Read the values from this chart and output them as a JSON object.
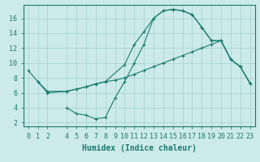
{
  "line1_x": [
    0,
    1,
    2,
    4,
    5,
    6,
    7,
    8,
    10,
    11,
    12,
    13,
    14,
    15,
    16,
    17,
    18,
    19,
    20,
    21,
    22,
    23
  ],
  "line1_y": [
    9,
    7.5,
    6.2,
    6.2,
    6.5,
    6.8,
    7.2,
    7.5,
    9.8,
    12.5,
    14.2,
    16.0,
    17.0,
    17.2,
    17.0,
    16.5,
    14.8,
    13.0,
    13.0,
    10.5,
    9.5,
    7.3
  ],
  "line2_x": [
    1,
    2,
    4,
    5,
    6,
    7,
    8,
    9,
    10,
    11,
    12,
    13,
    14,
    15,
    16,
    17,
    18,
    19,
    20,
    21,
    22,
    23
  ],
  "line2_y": [
    7.5,
    6.0,
    6.2,
    6.5,
    6.8,
    7.2,
    7.5,
    7.7,
    8.0,
    8.5,
    9.0,
    9.5,
    10.0,
    10.5,
    11.0,
    11.5,
    12.0,
    12.5,
    13.0,
    10.5,
    9.5,
    7.3
  ],
  "line3_x": [
    4,
    5,
    6,
    7,
    8,
    9,
    10,
    11,
    12,
    13,
    14,
    15,
    16,
    17,
    18,
    19,
    20,
    21,
    22,
    23
  ],
  "line3_y": [
    4.0,
    3.2,
    3.0,
    2.5,
    2.7,
    5.3,
    7.5,
    10.0,
    12.5,
    16.0,
    17.0,
    17.2,
    17.0,
    16.5,
    14.8,
    13.0,
    13.0,
    10.5,
    9.5,
    7.3
  ],
  "color": "#1a7a6e",
  "bg_color": "#cceaea",
  "grid_color": "#aad4d4",
  "xlabel": "Humidex (Indice chaleur)",
  "xlim": [
    -0.5,
    23.5
  ],
  "ylim": [
    1.5,
    17.8
  ],
  "xticks": [
    0,
    1,
    2,
    4,
    5,
    6,
    7,
    8,
    9,
    10,
    11,
    12,
    13,
    14,
    15,
    16,
    17,
    18,
    19,
    20,
    21,
    22,
    23
  ],
  "yticks": [
    2,
    4,
    6,
    8,
    10,
    12,
    14,
    16
  ],
  "fontsize_label": 7,
  "fontsize_tick": 6
}
